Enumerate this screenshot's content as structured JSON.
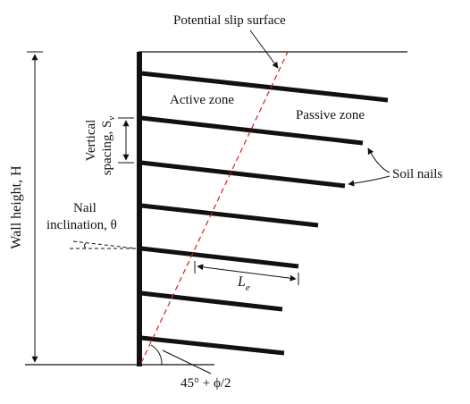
{
  "labels": {
    "slip_surface": "Potential slip surface",
    "active_zone": "Active zone",
    "passive_zone": "Passive zone",
    "soil_nails": "Soil nails",
    "vertical_spacing_line1": "Vertical",
    "vertical_spacing_line2": "spacing, S",
    "vertical_spacing_sub": "v",
    "nail_inclination_line1": "Nail",
    "nail_inclination_line2": "inclination, θ",
    "wall_height": "Wall height, H",
    "embedment_length": "L",
    "embedment_length_sub": "e",
    "angle_label": "45° + ϕ/2"
  },
  "colors": {
    "line": "#111111",
    "slip_surface": "#d62020",
    "background": "#ffffff"
  },
  "nail_count": 7
}
